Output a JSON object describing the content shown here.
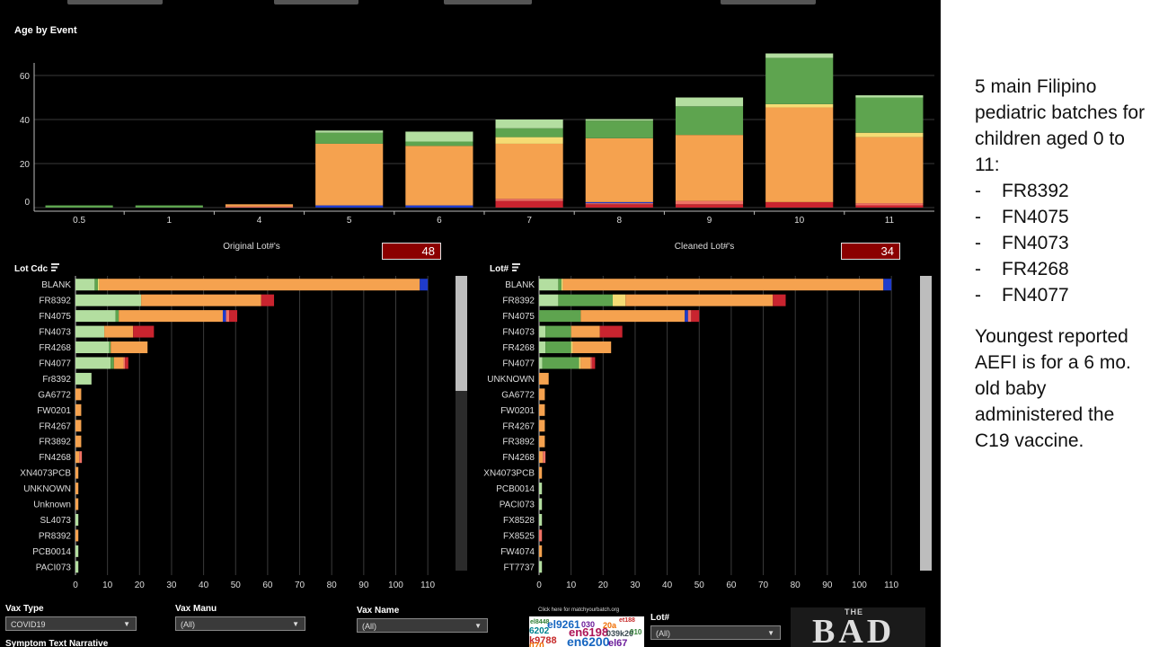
{
  "top_chart": {
    "title": "Age by Event",
    "type": "bar",
    "categories": [
      "0.5",
      "1",
      "4",
      "5",
      "6",
      "7",
      "8",
      "9",
      "10",
      "11"
    ],
    "yticks": [
      0,
      20,
      40,
      60
    ],
    "ylim": [
      0,
      72
    ],
    "segment_colors": [
      "#c9242f",
      "#f07265",
      "#1f3bcc",
      "#f5a24f",
      "#f5dc74",
      "#5ea44f",
      "#b3dea0"
    ],
    "stacks": [
      [
        0,
        0,
        0,
        0,
        0,
        1,
        0
      ],
      [
        0,
        0,
        0,
        0,
        0,
        1,
        0
      ],
      [
        0,
        0.5,
        0,
        1.0,
        0,
        0,
        0
      ],
      [
        0,
        0,
        1,
        28,
        0,
        5,
        1
      ],
      [
        0,
        0,
        1,
        27,
        0,
        2,
        4.5
      ],
      [
        3,
        1,
        0,
        25,
        3,
        4,
        4
      ],
      [
        1.5,
        0.5,
        0.5,
        29,
        0,
        8,
        0.7
      ],
      [
        1.5,
        1.5,
        0,
        30,
        0,
        13,
        4
      ],
      [
        2.5,
        0,
        0,
        43,
        1.5,
        21,
        2
      ],
      [
        1,
        1,
        0,
        30,
        2,
        16,
        1
      ]
    ]
  },
  "lot_charts": [
    {
      "title": "Original Lot#'s",
      "count": "48",
      "field_label": "Lot Cdc",
      "xticks": [
        0,
        10,
        20,
        30,
        40,
        50,
        60,
        70,
        80,
        90,
        100,
        110
      ],
      "xlim": [
        0,
        114
      ],
      "segment_colors": [
        "#b3dea0",
        "#5ea44f",
        "#f5dc74",
        "#f5a24f",
        "#1f3bcc",
        "#f07265",
        "#c9242f"
      ],
      "rows": [
        {
          "label": "BLANK",
          "values": [
            6,
            1,
            0.5,
            100,
            2.5,
            0,
            0
          ]
        },
        {
          "label": "FR8392",
          "values": [
            20.5,
            0,
            0,
            37.5,
            0,
            0,
            4
          ]
        },
        {
          "label": "FN4075",
          "values": [
            12.5,
            1,
            0,
            32.5,
            1,
            1,
            2.5
          ]
        },
        {
          "label": "FN4073",
          "values": [
            9,
            0,
            0,
            9,
            0,
            0,
            6.5
          ]
        },
        {
          "label": "FR4268",
          "values": [
            10.5,
            0.5,
            0,
            11.5,
            0,
            0,
            0
          ]
        },
        {
          "label": "FN4077",
          "values": [
            11,
            1,
            0,
            3,
            0,
            0.5,
            1
          ]
        },
        {
          "label": "Fr8392",
          "values": [
            5,
            0,
            0,
            0,
            0,
            0,
            0
          ]
        },
        {
          "label": "GA6772",
          "values": [
            0,
            0,
            0,
            1.8,
            0,
            0,
            0
          ]
        },
        {
          "label": "FW0201",
          "values": [
            0,
            0,
            0,
            1.8,
            0,
            0,
            0
          ]
        },
        {
          "label": "FR4267",
          "values": [
            0,
            0,
            0,
            1.8,
            0,
            0,
            0
          ]
        },
        {
          "label": "FR3892",
          "values": [
            0,
            0,
            0,
            1.8,
            0,
            0,
            0
          ]
        },
        {
          "label": "FN4268",
          "values": [
            0,
            0,
            0,
            1.2,
            0,
            0.8,
            0
          ]
        },
        {
          "label": "XN4073PCB",
          "values": [
            0,
            0,
            0,
            0.9,
            0,
            0,
            0
          ]
        },
        {
          "label": "UNKNOWN",
          "values": [
            0,
            0,
            0,
            0.9,
            0,
            0,
            0
          ]
        },
        {
          "label": "Unknown",
          "values": [
            0,
            0,
            0,
            0.9,
            0,
            0,
            0
          ]
        },
        {
          "label": "SL4073",
          "values": [
            0.9,
            0,
            0,
            0,
            0,
            0,
            0
          ]
        },
        {
          "label": "PR8392",
          "values": [
            0,
            0,
            0,
            0.9,
            0,
            0,
            0
          ]
        },
        {
          "label": "PCB0014",
          "values": [
            0.9,
            0,
            0,
            0,
            0,
            0,
            0
          ]
        },
        {
          "label": "PACI073",
          "values": [
            0.9,
            0,
            0,
            0,
            0,
            0,
            0
          ]
        }
      ]
    },
    {
      "title": "Cleaned Lot#'s",
      "count": "34",
      "field_label": "Lot#",
      "xticks": [
        0,
        10,
        20,
        30,
        40,
        50,
        60,
        70,
        80,
        90,
        100,
        110
      ],
      "xlim": [
        0,
        114
      ],
      "segment_colors": [
        "#b3dea0",
        "#5ea44f",
        "#f5dc74",
        "#f5a24f",
        "#1f3bcc",
        "#f07265",
        "#c9242f"
      ],
      "rows": [
        {
          "label": "BLANK",
          "values": [
            6,
            1,
            0.5,
            100,
            2.5,
            0,
            0
          ]
        },
        {
          "label": "FR8392",
          "values": [
            6,
            17,
            4,
            46,
            0,
            0,
            4
          ]
        },
        {
          "label": "FN4075",
          "values": [
            0,
            13,
            0,
            32.5,
            1,
            1,
            2.5
          ]
        },
        {
          "label": "FN4073",
          "values": [
            2,
            8,
            0,
            9,
            0,
            0,
            7
          ]
        },
        {
          "label": "FR4268",
          "values": [
            2,
            8,
            0.5,
            12,
            0,
            0,
            0
          ]
        },
        {
          "label": "FN4077",
          "values": [
            1,
            11.5,
            0.5,
            3,
            0,
            0.5,
            1
          ]
        },
        {
          "label": "UNKNOWN",
          "values": [
            0,
            0,
            0,
            3,
            0,
            0,
            0
          ]
        },
        {
          "label": "GA6772",
          "values": [
            0,
            0,
            0,
            1.8,
            0,
            0,
            0
          ]
        },
        {
          "label": "FW0201",
          "values": [
            0,
            0,
            0,
            1.8,
            0,
            0,
            0
          ]
        },
        {
          "label": "FR4267",
          "values": [
            0,
            0,
            0,
            1.8,
            0,
            0,
            0
          ]
        },
        {
          "label": "FR3892",
          "values": [
            0,
            0,
            0,
            1.8,
            0,
            0,
            0
          ]
        },
        {
          "label": "FN4268",
          "values": [
            0,
            0,
            0,
            1.2,
            0,
            0.8,
            0
          ]
        },
        {
          "label": "XN4073PCB",
          "values": [
            0,
            0,
            0,
            0.9,
            0,
            0,
            0
          ]
        },
        {
          "label": "PCB0014",
          "values": [
            0.9,
            0,
            0,
            0,
            0,
            0,
            0
          ]
        },
        {
          "label": "PACI073",
          "values": [
            0.9,
            0,
            0,
            0,
            0,
            0,
            0
          ]
        },
        {
          "label": "FX8528",
          "values": [
            0.9,
            0,
            0,
            0,
            0,
            0,
            0
          ]
        },
        {
          "label": "FX8525",
          "values": [
            0,
            0,
            0,
            0,
            0,
            0.9,
            0
          ]
        },
        {
          "label": "FW4074",
          "values": [
            0,
            0,
            0,
            0.9,
            0,
            0,
            0
          ]
        },
        {
          "label": "FT7737",
          "values": [
            0.9,
            0,
            0,
            0,
            0,
            0,
            0
          ]
        }
      ]
    }
  ],
  "filters": {
    "vax_type": {
      "label": "Vax Type",
      "value": "COVID19"
    },
    "vax_manu": {
      "label": "Vax Manu",
      "value": "(All)"
    },
    "vax_name": {
      "label": "Vax Name",
      "value": "(All)"
    },
    "lot": {
      "label": "Lot#",
      "value": "(All)"
    },
    "symptom_label": "Symptom Text Narrative"
  },
  "match_link": "Click here for matchyourbatch.org",
  "mosaic_text": [
    "el8448",
    "et188",
    "el9261",
    "030",
    "20a",
    "6202",
    "en6198",
    "039k20",
    "010",
    "k9788",
    "en6200",
    "el67",
    "070"
  ],
  "logo": {
    "small": "THE",
    "big": "BAD"
  },
  "notes": {
    "intro": "5 main Filipino pediatric batches for children aged 0 to 11:",
    "bullet_marker": "-",
    "batches": [
      "FR8392",
      "FN4075",
      "FN4073",
      "FR4268",
      "FN4077"
    ],
    "closing": "Youngest reported AEFI is for a 6 mo. old baby administered the C19 vaccine."
  },
  "chart_data": [
    {
      "type": "bar",
      "title": "Age by Event",
      "categories": [
        "0.5",
        "1",
        "4",
        "5",
        "6",
        "7",
        "8",
        "9",
        "10",
        "11"
      ],
      "values": [
        1,
        1,
        1.5,
        35,
        35,
        40,
        41,
        51,
        70,
        51
      ],
      "ylim": [
        0,
        72
      ]
    },
    {
      "type": "bar",
      "title": "Original Lot#'s",
      "categories": [
        "BLANK",
        "FR8392",
        "FN4075",
        "FN4073",
        "FR4268",
        "FN4077",
        "Fr8392",
        "GA6772",
        "FW0201",
        "FR4267",
        "FR3892",
        "FN4268",
        "XN4073PCB",
        "UNKNOWN",
        "Unknown",
        "SL4073",
        "PR8392",
        "PCB0014",
        "PACI073"
      ],
      "values": [
        110,
        62,
        50.5,
        24.5,
        22.5,
        16.5,
        5,
        1.8,
        1.8,
        1.8,
        1.8,
        2,
        0.9,
        0.9,
        0.9,
        0.9,
        0.9,
        0.9,
        0.9
      ],
      "xlim": [
        0,
        114
      ]
    },
    {
      "type": "bar",
      "title": "Cleaned Lot#'s",
      "categories": [
        "BLANK",
        "FR8392",
        "FN4075",
        "FN4073",
        "FR4268",
        "FN4077",
        "UNKNOWN",
        "GA6772",
        "FW0201",
        "FR4267",
        "FR3892",
        "FN4268",
        "XN4073PCB",
        "PCB0014",
        "PACI073",
        "FX8528",
        "FX8525",
        "FW4074",
        "FT7737"
      ],
      "values": [
        110,
        77,
        50,
        26,
        22.5,
        17.5,
        3,
        1.8,
        1.8,
        1.8,
        1.8,
        2,
        0.9,
        0.9,
        0.9,
        0.9,
        0.9,
        0.9,
        0.9
      ],
      "xlim": [
        0,
        114
      ]
    }
  ]
}
